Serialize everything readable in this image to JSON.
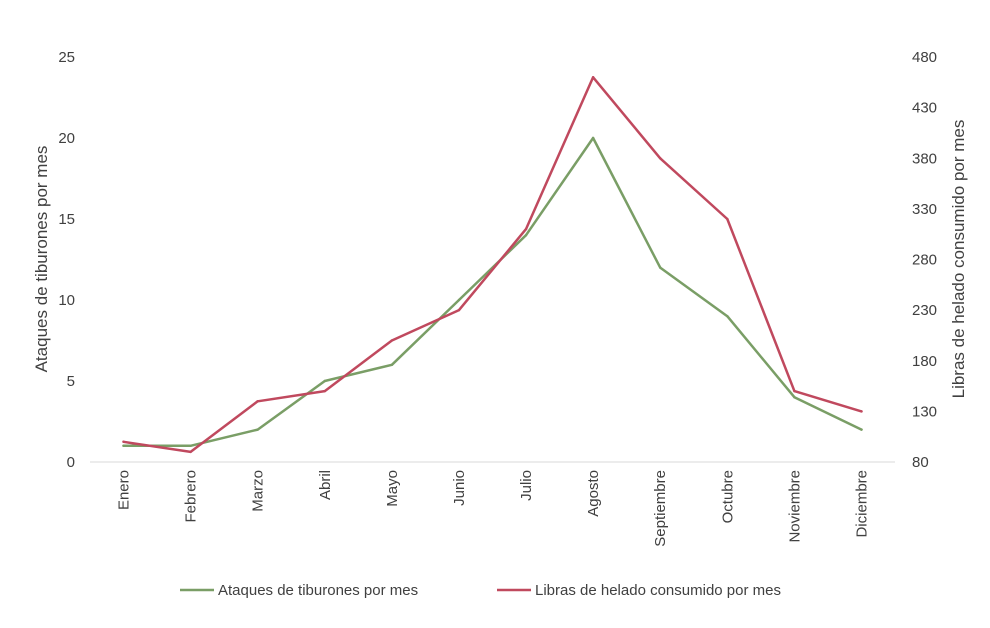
{
  "chart_data": {
    "type": "line",
    "categories": [
      "Enero",
      "Febrero",
      "Marzo",
      "Abril",
      "Mayo",
      "Junio",
      "Julio",
      "Agosto",
      "Septiembre",
      "Octubre",
      "Noviembre",
      "Diciembre"
    ],
    "series": [
      {
        "name": "Ataques de tiburones por mes",
        "axis": "left",
        "color": "#7a9e66",
        "values": [
          1,
          1,
          2,
          5,
          6,
          10,
          14,
          20,
          12,
          9,
          4,
          2
        ]
      },
      {
        "name": "Libras de helado consumido por mes",
        "axis": "right",
        "color": "#c0495e",
        "values": [
          100,
          90,
          140,
          150,
          200,
          230,
          310,
          460,
          380,
          320,
          150,
          130
        ]
      }
    ],
    "ylabel_left": "Ataques de tiburones por mes",
    "ylabel_right": "Libras de helado consumido por mes",
    "ylim_left": [
      0,
      25
    ],
    "yticks_left": [
      0,
      5,
      10,
      15,
      20,
      25
    ],
    "ylim_right": [
      80,
      480
    ],
    "yticks_right": [
      80,
      130,
      180,
      230,
      280,
      330,
      380,
      430,
      480
    ],
    "grid": false,
    "legend": "bottom"
  }
}
